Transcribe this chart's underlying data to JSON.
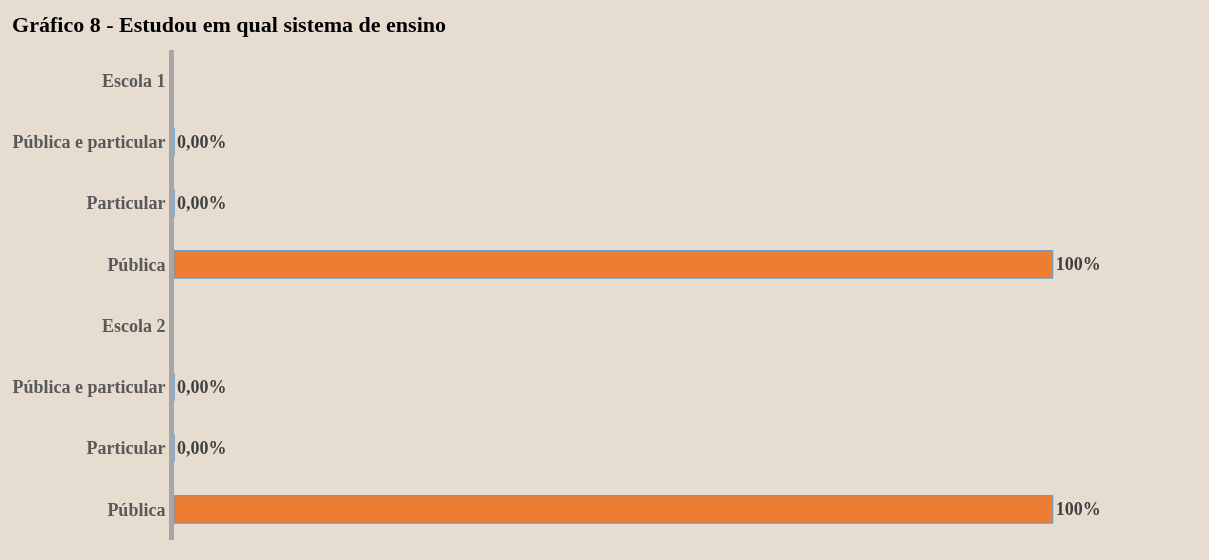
{
  "chart_data": {
    "type": "bar",
    "orientation": "horizontal",
    "title": "Gráfico 8 - Estudou em qual sistema de ensino",
    "categories": [
      "Escola 1",
      "Pública e particular",
      "Particular",
      "Pública",
      "Escola 2",
      "Pública e particular",
      "Particular",
      "Pública"
    ],
    "values": [
      null,
      0,
      0,
      100,
      null,
      0,
      0,
      100
    ],
    "colors": [
      "#5b9bd5",
      "#5b9bd5",
      "#5b9bd5",
      "#ed7d31",
      "#5b9bd5",
      "#5b9bd5",
      "#5b9bd5",
      "#ed7d31"
    ],
    "value_labels": [
      null,
      "0,00%",
      "0,00%",
      "100%",
      null,
      "0,00%",
      "0,00%",
      "100%"
    ],
    "grid": false
  }
}
